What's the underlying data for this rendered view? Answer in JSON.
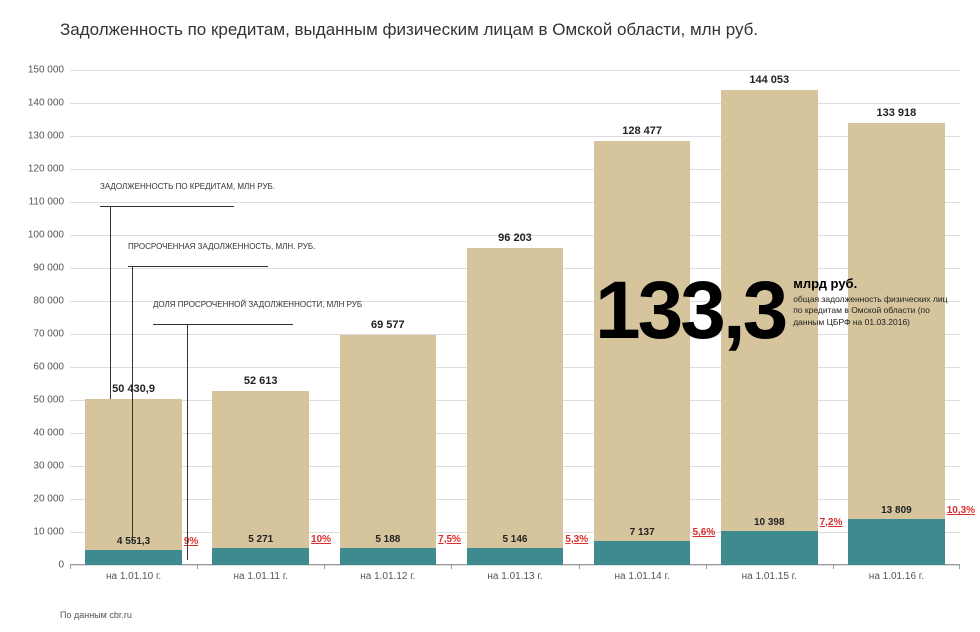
{
  "title": "Задолженность по кредитам, выданным физическим лицам в Омской области, млн руб.",
  "source": "По данным cbr.ru",
  "chart": {
    "type": "bar",
    "ylim": [
      0,
      150000
    ],
    "ytick_step": 10000,
    "ytick_labels": [
      "0",
      "10 000",
      "20 000",
      "30 000",
      "40 000",
      "50 000",
      "60 000",
      "70 000",
      "80 000",
      "90 000",
      "100 000",
      "110 000",
      "120 000",
      "130 000",
      "140 000",
      "150 000"
    ],
    "grid_color": "#dddddd",
    "background_color": "#ffffff",
    "main_bar_color": "#d6c49d",
    "overdue_bar_color": "#3f8a8f",
    "pct_color": "#d92e2e",
    "label_fontsize": 10,
    "title_fontsize": 17,
    "bar_width": 0.76,
    "categories": [
      "на 1.01.10 г.",
      "на 1.01.11 г.",
      "на 1.01.12 г.",
      "на 1.01.13 г.",
      "на 1.01.14 г.",
      "на 1.01.15 г.",
      "на 1.01.16 г."
    ],
    "series": {
      "total_debt": {
        "label": "ЗАДОЛЖЕННОСТЬ ПО КРЕДИТАМ, МЛН РУБ.",
        "values": [
          50430.9,
          52613,
          69577,
          96203,
          128477,
          144053,
          133918
        ],
        "display": [
          "50 430,9",
          "52 613",
          "69 577",
          "96 203",
          "128 477",
          "144 053",
          "133 918"
        ]
      },
      "overdue_debt": {
        "label": "ПРОСРОЧЕННАЯ ЗАДОЛЖЕННОСТЬ, МЛН. РУБ.",
        "values": [
          4551.3,
          5271,
          5188,
          5146,
          7137,
          10398,
          13809
        ],
        "display": [
          "4 551,3",
          "5 271",
          "5 188",
          "5 146",
          "7 137",
          "10 398",
          "13 809"
        ]
      },
      "overdue_pct": {
        "label": "ДОЛЯ ПРОСРОЧЕННОЙ ЗАДОЛЖЕННОСТИ, МЛН РУБ",
        "values": [
          9,
          10,
          7.5,
          5.3,
          5.6,
          7.2,
          10.3
        ],
        "display": [
          "9%",
          "10%",
          "7,5%",
          "5,3%",
          "5,6%",
          "7,2%",
          "10,3%"
        ]
      }
    }
  },
  "callouts": {
    "debt": "ЗАДОЛЖЕННОСТЬ ПО\nКРЕДИТАМ, МЛН РУБ.",
    "overdue": "ПРОСРОЧЕННАЯ ЗАДОЛЖЕННОСТЬ,\nМЛН. РУБ.",
    "pct": "ДОЛЯ ПРОСРОЧЕННОЙ\nЗАДОЛЖЕННОСТИ, МЛН РУБ"
  },
  "headline": {
    "number": "133,3",
    "unit": "млрд руб.",
    "desc": "общая задолженность физических лиц по кредитам в Омской области (по данным ЦБРФ на 01.03.2016)"
  }
}
